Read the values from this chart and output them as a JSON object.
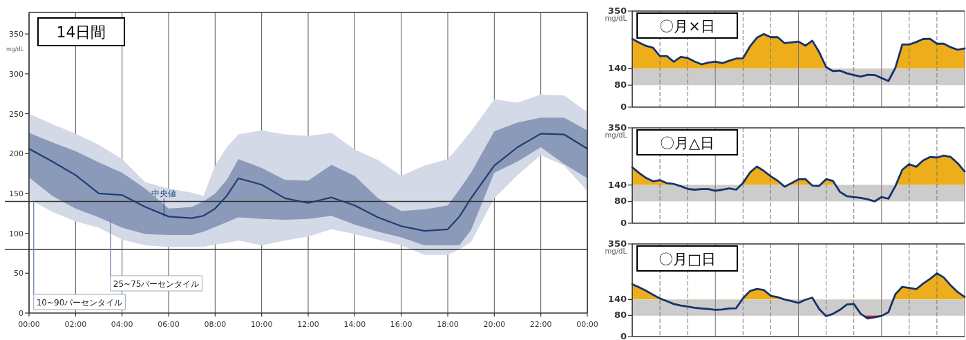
{
  "chart_data": [
    {
      "type": "line",
      "title": "14日間",
      "ylabel": "mg/dL",
      "xlim": [
        0,
        24
      ],
      "ylim": [
        0,
        377
      ],
      "xticks": [
        {
          "value": 0,
          "label": "00:00"
        },
        {
          "value": 2,
          "label": "02:00"
        },
        {
          "value": 4,
          "label": "04:00"
        },
        {
          "value": 6,
          "label": "06:00"
        },
        {
          "value": 8,
          "label": "08:00"
        },
        {
          "value": 10,
          "label": "10:00"
        },
        {
          "value": 12,
          "label": "12:00"
        },
        {
          "value": 14,
          "label": "14:00"
        },
        {
          "value": 16,
          "label": "16:00"
        },
        {
          "value": 18,
          "label": "18:00"
        },
        {
          "value": 20,
          "label": "20:00"
        },
        {
          "value": 22,
          "label": "22:00"
        },
        {
          "value": 24,
          "label": "00:00"
        }
      ],
      "yticks": [
        0,
        50,
        100,
        150,
        200,
        250,
        300,
        350
      ],
      "grid": "x",
      "ref_lines": [
        {
          "axis": "y",
          "value": 140,
          "color": "#333333"
        },
        {
          "axis": "y",
          "value": 80,
          "color": "#333333"
        }
      ],
      "series": [
        {
          "color": "#d3d9e6",
          "x": [
            0,
            1,
            2,
            3,
            4,
            5,
            6,
            7,
            7.5,
            8,
            8.5,
            9,
            10,
            11,
            12,
            13,
            14,
            15,
            16,
            17,
            18,
            18.5,
            19,
            20,
            21,
            22,
            23,
            24
          ],
          "values": [
            null,
            null,
            null,
            null,
            null,
            null,
            null,
            null,
            null,
            null,
            null,
            null,
            null,
            null,
            null,
            null,
            null,
            null,
            null,
            null,
            null,
            null,
            null,
            null,
            null,
            null,
            null,
            null
          ],
          "upper": [
            250,
            237,
            225,
            211,
            193,
            164,
            156,
            151,
            147,
            185,
            208,
            224,
            229,
            224,
            222,
            226,
            205,
            192,
            172,
            185,
            193,
            210,
            228,
            268,
            264,
            274,
            273,
            252
          ],
          "lower": [
            143,
            127,
            115,
            107,
            92,
            85,
            83,
            83,
            83,
            86,
            88,
            91,
            85,
            91,
            96,
            105,
            99,
            92,
            85,
            73,
            73,
            80,
            89,
            144,
            173,
            198,
            185,
            153
          ]
        },
        {
          "color": "#1f3d73",
          "x": [
            0,
            1,
            2,
            3,
            4,
            5,
            6,
            7,
            7.5,
            8,
            8.5,
            9,
            10,
            11,
            12,
            13,
            14,
            15,
            16,
            17,
            18,
            18.5,
            19,
            20,
            21,
            22,
            23,
            24
          ],
          "values": [
            206,
            190,
            173,
            150,
            148,
            133,
            121,
            119,
            122,
            131,
            147,
            169,
            161,
            144,
            138,
            145,
            135,
            120,
            109,
            103,
            105,
            121,
            144,
            185,
            208,
            225,
            224,
            206
          ],
          "upper": [
            226,
            214,
            203,
            189,
            176,
            156,
            131,
            133,
            140,
            150,
            167,
            193,
            182,
            167,
            166,
            186,
            172,
            144,
            128,
            130,
            135,
            155,
            176,
            228,
            239,
            245,
            245,
            229
          ],
          "lower": [
            170,
            147,
            131,
            120,
            107,
            99,
            98,
            98,
            102,
            108,
            114,
            120,
            118,
            117,
            118,
            122,
            111,
            102,
            95,
            85,
            85,
            85,
            104,
            176,
            190,
            208,
            187,
            169
          ]
        }
      ],
      "annotations": [
        {
          "text": "10~90パーセンタイル",
          "x": 0.2,
          "y": 140
        },
        {
          "text": "25~75パーセンタイル",
          "x": 3.5,
          "y": 118
        },
        {
          "text": "中央値",
          "x": 5.8,
          "y": 121
        }
      ]
    },
    {
      "type": "line",
      "title": "〇月×日",
      "ylabel": "mg/dL",
      "ylim": [
        0,
        350
      ],
      "yticks": [
        0,
        80,
        140,
        350
      ],
      "categories": [
        null,
        null,
        null,
        null,
        null,
        null,
        null,
        null,
        null,
        null,
        null,
        null,
        null,
        null,
        null,
        null,
        null,
        null,
        null,
        null,
        null,
        null,
        null,
        null,
        null,
        null,
        null,
        null,
        null,
        null,
        null,
        null,
        null,
        null,
        null,
        null,
        null,
        null,
        null,
        null,
        null,
        null,
        null,
        null,
        null,
        null,
        null,
        null,
        null
      ],
      "tick_labels": "y",
      "grid": "x",
      "bands": [
        {
          "axis": "y",
          "from": 80,
          "to": 140,
          "color": "#cccccc"
        },
        {
          "axis": "y",
          "from": 140,
          "to": 350,
          "color": "#eeae1b"
        }
      ],
      "series": [
        {
          "color": "#16326a",
          "values": [
            249,
            235,
            223,
            216,
            186,
            186,
            165,
            183,
            179,
            166,
            156,
            162,
            166,
            160,
            169,
            177,
            178,
            221,
            253,
            266,
            255,
            255,
            233,
            236,
            239,
            224,
            242,
            200,
            146,
            131,
            133,
            123,
            117,
            111,
            118,
            117,
            106,
            95,
            143,
            228,
            228,
            237,
            248,
            249,
            231,
            231,
            218,
            209,
            214
          ]
        }
      ]
    },
    {
      "type": "line",
      "title": "〇月△日",
      "ylabel": "mg/dL",
      "ylim": [
        0,
        350
      ],
      "yticks": [
        0,
        80,
        140,
        350
      ],
      "categories": [
        null,
        null,
        null,
        null,
        null,
        null,
        null,
        null,
        null,
        null,
        null,
        null,
        null,
        null,
        null,
        null,
        null,
        null,
        null,
        null,
        null,
        null,
        null,
        null,
        null,
        null,
        null,
        null,
        null,
        null,
        null,
        null,
        null,
        null,
        null,
        null,
        null,
        null,
        null,
        null,
        null,
        null,
        null,
        null,
        null,
        null,
        null,
        null,
        null
      ],
      "tick_labels": "y",
      "grid": "x",
      "bands": [
        {
          "axis": "y",
          "from": 80,
          "to": 140,
          "color": "#cccccc"
        },
        {
          "axis": "y",
          "from": 140,
          "to": 350,
          "color": "#eeae1b"
        }
      ],
      "series": [
        {
          "color": "#16326a",
          "values": [
            205,
            184,
            166,
            154,
            158,
            147,
            144,
            136,
            126,
            123,
            125,
            125,
            119,
            123,
            128,
            123,
            148,
            186,
            208,
            192,
            172,
            156,
            134,
            147,
            161,
            162,
            138,
            137,
            162,
            155,
            115,
            99,
            96,
            93,
            88,
            80,
            96,
            90,
            136,
            196,
            217,
            207,
            230,
            243,
            241,
            248,
            243,
            220,
            190
          ]
        }
      ]
    },
    {
      "type": "line",
      "title": "〇月□日",
      "ylabel": "mg/dL",
      "ylim": [
        0,
        350
      ],
      "yticks": [
        0,
        80,
        140,
        350
      ],
      "categories": [
        null,
        null,
        null,
        null,
        null,
        null,
        null,
        null,
        null,
        null,
        null,
        null,
        null,
        null,
        null,
        null,
        null,
        null,
        null,
        null,
        null,
        null,
        null,
        null,
        null,
        null,
        null,
        null,
        null,
        null,
        null,
        null,
        null,
        null,
        null,
        null,
        null,
        null,
        null,
        null,
        null,
        null,
        null,
        null,
        null,
        null,
        null,
        null,
        null
      ],
      "tick_labels": "y",
      "grid": "x",
      "bands": [
        {
          "axis": "y",
          "from": 80,
          "to": 140,
          "color": "#cccccc"
        },
        {
          "axis": "y",
          "from": 140,
          "to": 350,
          "color": "#eeae1b"
        },
        {
          "axis": "y",
          "from": 0,
          "to": 80,
          "color": "#c0282d"
        }
      ],
      "series": [
        {
          "color": "#16326a",
          "values": [
            198,
            186,
            173,
            158,
            144,
            134,
            123,
            117,
            113,
            109,
            106,
            104,
            101,
            102,
            106,
            107,
            145,
            172,
            180,
            176,
            154,
            149,
            140,
            134,
            127,
            139,
            147,
            104,
            77,
            86,
            101,
            121,
            123,
            86,
            68,
            73,
            78,
            92,
            160,
            188,
            184,
            179,
            200,
            218,
            239,
            223,
            193,
            168,
            150
          ]
        }
      ]
    }
  ]
}
